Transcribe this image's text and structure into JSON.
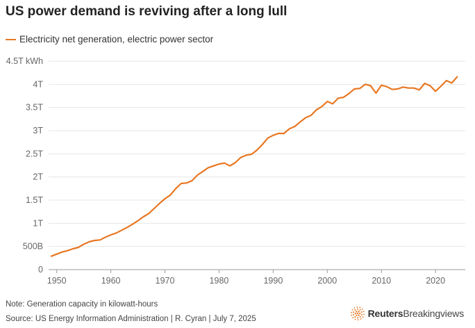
{
  "title": "US power demand is reviving after a long lull",
  "note": "Note: Generation capacity in kilowatt-hours",
  "source": "Source: US Energy Information Administration | R. Cyran | July 7, 2025",
  "brand": {
    "bold": "Reuters",
    "light": "Breakingviews",
    "logo_icon": "reuters-dots-logo-icon"
  },
  "colors": {
    "series": "#e87722",
    "grid": "#e6e6e6",
    "axis": "#9a9a9a",
    "tick_text": "#666666"
  },
  "chart_data": {
    "type": "line",
    "title": "US power demand is reviving after a long lull",
    "xlabel": "",
    "ylabel": "",
    "xlim": [
      1948.5,
      2025.5
    ],
    "ylim": [
      0,
      4500
    ],
    "unit_note": "values in billion kWh",
    "y_ticks": [
      0,
      500,
      1000,
      1500,
      2000,
      2500,
      3000,
      3500,
      4000,
      4500
    ],
    "y_tick_labels": [
      "0",
      "500B",
      "1T",
      "1.5T",
      "2T",
      "2.5T",
      "3T",
      "3.5T",
      "4T",
      "4.5T kWh"
    ],
    "x_ticks": [
      1950,
      1960,
      1970,
      1980,
      1990,
      2000,
      2010,
      2020
    ],
    "x_tick_labels": [
      "1950",
      "1960",
      "1970",
      "1980",
      "1990",
      "2000",
      "2010",
      "2020"
    ],
    "legend": "top-left",
    "series": [
      {
        "name": "Electricity net generation, electric power sector",
        "x": [
          1949,
          1950,
          1951,
          1952,
          1953,
          1954,
          1955,
          1956,
          1957,
          1958,
          1959,
          1960,
          1961,
          1962,
          1963,
          1964,
          1965,
          1966,
          1967,
          1968,
          1969,
          1970,
          1971,
          1972,
          1973,
          1974,
          1975,
          1976,
          1977,
          1978,
          1979,
          1980,
          1981,
          1982,
          1983,
          1984,
          1985,
          1986,
          1987,
          1988,
          1989,
          1990,
          1991,
          1992,
          1993,
          1994,
          1995,
          1996,
          1997,
          1998,
          1999,
          2000,
          2001,
          2002,
          2003,
          2004,
          2005,
          2006,
          2007,
          2008,
          2009,
          2010,
          2011,
          2012,
          2013,
          2014,
          2015,
          2016,
          2017,
          2018,
          2019,
          2020,
          2021,
          2022,
          2023,
          2024
        ],
        "values": [
          290,
          335,
          380,
          410,
          450,
          480,
          550,
          600,
          630,
          640,
          700,
          750,
          790,
          850,
          910,
          980,
          1055,
          1140,
          1210,
          1320,
          1430,
          1530,
          1610,
          1750,
          1860,
          1870,
          1920,
          2040,
          2120,
          2200,
          2240,
          2280,
          2300,
          2240,
          2310,
          2420,
          2470,
          2490,
          2580,
          2700,
          2840,
          2900,
          2940,
          2940,
          3040,
          3090,
          3190,
          3280,
          3330,
          3450,
          3520,
          3630,
          3580,
          3700,
          3720,
          3800,
          3900,
          3910,
          4000,
          3970,
          3810,
          3980,
          3950,
          3890,
          3900,
          3940,
          3920,
          3920,
          3880,
          4020,
          3970,
          3850,
          3960,
          4080,
          4030,
          4160
        ]
      }
    ]
  }
}
